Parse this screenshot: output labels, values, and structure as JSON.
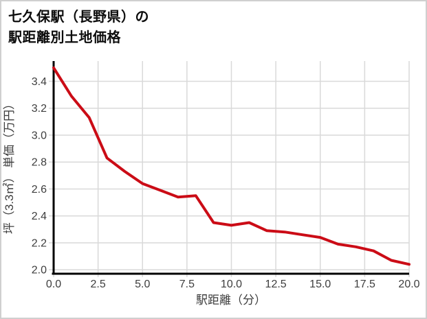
{
  "title": {
    "line1": "七久保駅（長野県）の",
    "line2": "駅距離別土地価格"
  },
  "colors": {
    "line": "#cb0c16",
    "grid": "#d9d9d9",
    "axis": "#000000",
    "tick_text": "#3d3d3d",
    "frame_border": "#cfcfcf",
    "background": "#ffffff"
  },
  "chart_data": {
    "type": "line",
    "title": "七久保駅（長野県）の駅距離別土地価格",
    "xlabel": "駅距離（分）",
    "ylabel": "坪（3.3㎡） 単価（万円）",
    "x": [
      0,
      1,
      2,
      3,
      4,
      5,
      6,
      7,
      8,
      9,
      10,
      11,
      12,
      13,
      14,
      15,
      16,
      17,
      18,
      19,
      20
    ],
    "y": [
      3.5,
      3.29,
      3.13,
      2.83,
      2.73,
      2.64,
      2.59,
      2.54,
      2.55,
      2.35,
      2.33,
      2.35,
      2.29,
      2.28,
      2.26,
      2.24,
      2.19,
      2.17,
      2.14,
      2.07,
      2.04
    ],
    "xlim": [
      0,
      20
    ],
    "ylim": [
      1.95,
      3.55
    ],
    "x_tick_values": [
      0,
      2.5,
      5,
      7.5,
      10,
      12.5,
      15,
      17.5,
      20
    ],
    "x_tick_labels": [
      "0.0",
      "2.5",
      "5.0",
      "7.5",
      "10.0",
      "12.5",
      "15.0",
      "17.5",
      "20.0"
    ],
    "y_tick_values": [
      2.0,
      2.2,
      2.4,
      2.6,
      2.8,
      3.0,
      3.2,
      3.4
    ],
    "y_tick_labels": [
      "2.0",
      "2.2",
      "2.4",
      "2.6",
      "2.8",
      "3.0",
      "3.2",
      "3.4"
    ],
    "grid": true,
    "legend": false,
    "line_width": 4
  }
}
